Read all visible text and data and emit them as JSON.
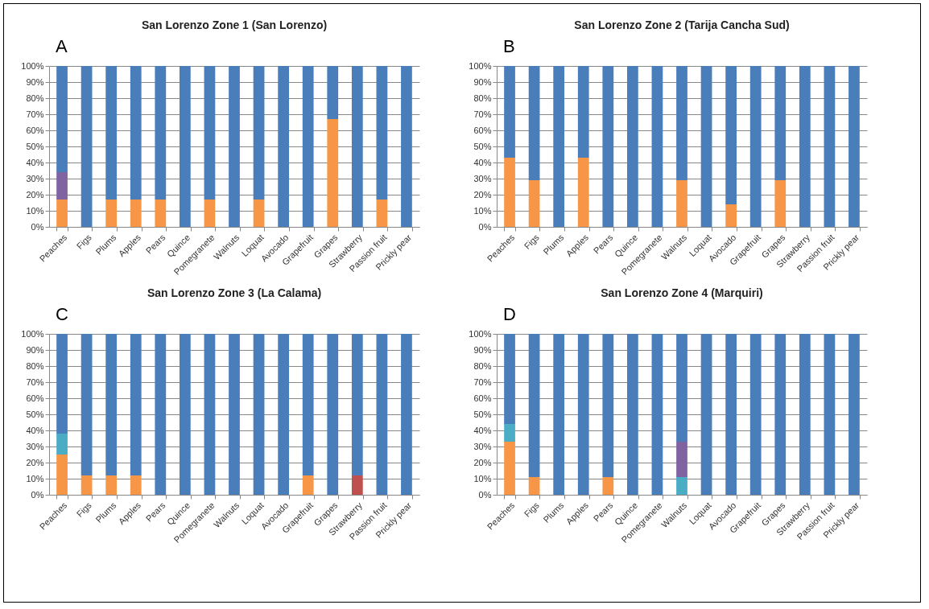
{
  "chart_data": [
    {
      "type": "bar",
      "title": "San Lorenzo Zone 1 (San Lorenzo)",
      "annotations": [
        "A"
      ],
      "stacked": true,
      "grid": "y",
      "categories": [
        "Peaches",
        "Figs",
        "Plums",
        "Apples",
        "Pears",
        "Quince",
        "Pomegranete",
        "Walnuts",
        "Loquat",
        "Avocado",
        "Grapefruit",
        "Grapes",
        "Strawberry",
        "Passion fruit",
        "Prickly pear"
      ],
      "series": [
        {
          "color": "#f79646",
          "values": [
            17,
            0,
            17,
            17,
            17,
            0,
            17,
            0,
            17,
            0,
            0,
            67,
            0,
            17,
            0
          ]
        },
        {
          "color": "#8064a2",
          "values": [
            17,
            0,
            0,
            0,
            0,
            0,
            0,
            0,
            0,
            0,
            0,
            0,
            0,
            0,
            0
          ]
        },
        {
          "color": "#4a7ebb",
          "values": [
            66,
            100,
            83,
            83,
            83,
            100,
            83,
            100,
            83,
            100,
            100,
            33,
            100,
            83,
            100
          ]
        }
      ],
      "ylim": [
        0,
        100
      ],
      "yticks": [
        {
          "value": 0,
          "label": "0%"
        },
        {
          "value": 10,
          "label": "10%"
        },
        {
          "value": 20,
          "label": "20%"
        },
        {
          "value": 30,
          "label": "30%"
        },
        {
          "value": 40,
          "label": "40%"
        },
        {
          "value": 50,
          "label": "50%"
        },
        {
          "value": 60,
          "label": "60%"
        },
        {
          "value": 70,
          "label": "70%"
        },
        {
          "value": 80,
          "label": "80%"
        },
        {
          "value": 90,
          "label": "90%"
        },
        {
          "value": 100,
          "label": "100%"
        }
      ]
    },
    {
      "type": "bar",
      "title": "San Lorenzo Zone 2 (Tarija Cancha Sud)",
      "annotations": [
        "B"
      ],
      "stacked": true,
      "grid": "y",
      "categories": [
        "Peaches",
        "Figs",
        "Plums",
        "Apples",
        "Pears",
        "Quince",
        "Pomegranete",
        "Walnuts",
        "Loquat",
        "Avocado",
        "Grapefruit",
        "Grapes",
        "Strawberry",
        "Passion fruit",
        "Prickly pear"
      ],
      "series": [
        {
          "color": "#f79646",
          "values": [
            43,
            29,
            0,
            43,
            0,
            0,
            0,
            29,
            0,
            14,
            0,
            29,
            0,
            0,
            0
          ]
        },
        {
          "color": "#4a7ebb",
          "values": [
            57,
            71,
            100,
            57,
            100,
            100,
            100,
            71,
            100,
            86,
            100,
            71,
            100,
            100,
            100
          ]
        }
      ],
      "ylim": [
        0,
        100
      ],
      "yticks": [
        {
          "value": 0,
          "label": "0%"
        },
        {
          "value": 10,
          "label": "10%"
        },
        {
          "value": 20,
          "label": "20%"
        },
        {
          "value": 30,
          "label": "30%"
        },
        {
          "value": 40,
          "label": "40%"
        },
        {
          "value": 50,
          "label": "50%"
        },
        {
          "value": 60,
          "label": "60%"
        },
        {
          "value": 70,
          "label": "70%"
        },
        {
          "value": 80,
          "label": "80%"
        },
        {
          "value": 90,
          "label": "90%"
        },
        {
          "value": 100,
          "label": "100%"
        }
      ]
    },
    {
      "type": "bar",
      "title": "San Lorenzo Zone 3 (La Calama)",
      "annotations": [
        "C"
      ],
      "stacked": true,
      "grid": "y",
      "categories": [
        "Peaches",
        "Figs",
        "Plums",
        "Apples",
        "Pears",
        "Quince",
        "Pomegranete",
        "Walnuts",
        "Loquat",
        "Avocado",
        "Grapefruit",
        "Grapes",
        "Strawberry",
        "Passion fruit",
        "Prickly pear"
      ],
      "series": [
        {
          "color": "#f79646",
          "values": [
            25,
            12,
            12,
            12,
            0,
            0,
            0,
            0,
            0,
            0,
            12,
            0,
            0,
            0,
            0
          ]
        },
        {
          "color": "#c0504d",
          "values": [
            0,
            0,
            0,
            0,
            0,
            0,
            0,
            0,
            0,
            0,
            0,
            0,
            12,
            0,
            0
          ]
        },
        {
          "color": "#4bacc6",
          "values": [
            13,
            0,
            0,
            0,
            0,
            0,
            0,
            0,
            0,
            0,
            0,
            0,
            0,
            0,
            0
          ]
        },
        {
          "color": "#4a7ebb",
          "values": [
            62,
            88,
            88,
            88,
            100,
            100,
            100,
            100,
            100,
            100,
            88,
            100,
            88,
            100,
            100
          ]
        }
      ],
      "ylim": [
        0,
        100
      ],
      "yticks": [
        {
          "value": 0,
          "label": "0%"
        },
        {
          "value": 10,
          "label": "10%"
        },
        {
          "value": 20,
          "label": "20%"
        },
        {
          "value": 30,
          "label": "30%"
        },
        {
          "value": 40,
          "label": "40%"
        },
        {
          "value": 50,
          "label": "50%"
        },
        {
          "value": 60,
          "label": "60%"
        },
        {
          "value": 70,
          "label": "70%"
        },
        {
          "value": 80,
          "label": "80%"
        },
        {
          "value": 90,
          "label": "90%"
        },
        {
          "value": 100,
          "label": "100%"
        }
      ]
    },
    {
      "type": "bar",
      "title": "San Lorenzo Zone 4 (Marquiri)",
      "annotations": [
        "D"
      ],
      "stacked": true,
      "grid": "y",
      "categories": [
        "Peaches",
        "Figs",
        "Plums",
        "Apples",
        "Pears",
        "Quince",
        "Pomegranete",
        "Walnuts",
        "Loquat",
        "Avocado",
        "Grapefruit",
        "Grapes",
        "Strawberry",
        "Passion fruit",
        "Prickly pear"
      ],
      "series": [
        {
          "color": "#f79646",
          "values": [
            33,
            11,
            0,
            0,
            11,
            0,
            0,
            0,
            0,
            0,
            0,
            0,
            0,
            0,
            0
          ]
        },
        {
          "color": "#4bacc6",
          "values": [
            11,
            0,
            0,
            0,
            0,
            0,
            0,
            11,
            0,
            0,
            0,
            0,
            0,
            0,
            0
          ]
        },
        {
          "color": "#8064a2",
          "values": [
            0,
            0,
            0,
            0,
            0,
            0,
            0,
            22,
            0,
            0,
            0,
            0,
            0,
            0,
            0
          ]
        },
        {
          "color": "#4a7ebb",
          "values": [
            56,
            89,
            100,
            100,
            89,
            100,
            100,
            67,
            100,
            100,
            100,
            100,
            100,
            100,
            100
          ]
        }
      ],
      "ylim": [
        0,
        100
      ],
      "yticks": [
        {
          "value": 0,
          "label": "0%"
        },
        {
          "value": 10,
          "label": "10%"
        },
        {
          "value": 20,
          "label": "20%"
        },
        {
          "value": 30,
          "label": "30%"
        },
        {
          "value": 40,
          "label": "40%"
        },
        {
          "value": 50,
          "label": "50%"
        },
        {
          "value": 60,
          "label": "60%"
        },
        {
          "value": 70,
          "label": "70%"
        },
        {
          "value": 80,
          "label": "80%"
        },
        {
          "value": 90,
          "label": "90%"
        },
        {
          "value": 100,
          "label": "100%"
        }
      ]
    }
  ]
}
